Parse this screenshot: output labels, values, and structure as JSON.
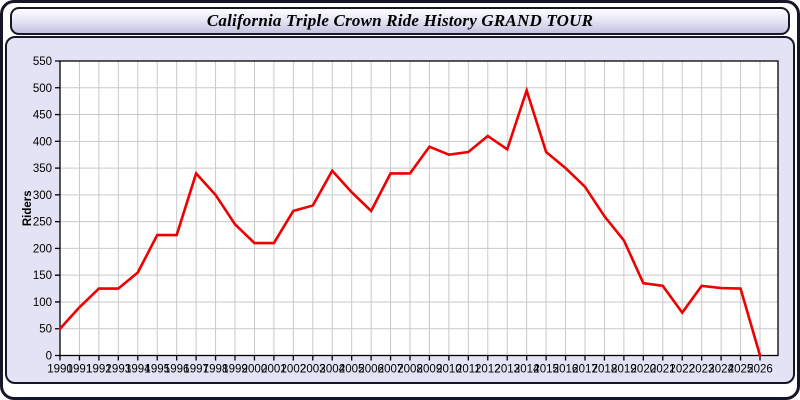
{
  "window": {
    "title": "California Triple Crown Ride History GRAND TOUR"
  },
  "colors": {
    "outer_border": "#16162a",
    "body_background": "#e3e3f5",
    "plot_background": "#ffffff",
    "grid": "#c9c9c9",
    "axis": "#000000",
    "line": "#ee0000",
    "tick_text": "#000000"
  },
  "chart_data": {
    "type": "line",
    "title": "California Triple Crown Ride History GRAND TOUR",
    "xlabel": "",
    "ylabel": "Riders",
    "ylim": [
      0,
      550
    ],
    "ytick_step": 50,
    "yticklabels": [
      "0",
      "50",
      "100",
      "150",
      "200",
      "250",
      "300",
      "350",
      "400",
      "450",
      "500",
      "550"
    ],
    "grid": true,
    "legend_position": "none",
    "x": [
      1990,
      1991,
      1992,
      1993,
      1994,
      1995,
      1996,
      1997,
      1998,
      1999,
      2000,
      2001,
      2002,
      2003,
      2004,
      2005,
      2006,
      2007,
      2008,
      2009,
      2010,
      2011,
      2012,
      2013,
      2014,
      2015,
      2016,
      2017,
      2018,
      2019,
      2020,
      2021,
      2022,
      2023,
      2024,
      2025,
      2026
    ],
    "xticklabels": [
      "1990",
      "1991",
      "1992",
      "1993",
      "1994",
      "1995",
      "1996",
      "1997",
      "1998",
      "1999",
      "2000",
      "2001",
      "2002",
      "2003",
      "2004",
      "2005",
      "2006",
      "2007",
      "2008",
      "2009",
      "2010",
      "2011",
      "2012",
      "2013",
      "2014",
      "2015",
      "2016",
      "2017",
      "2018",
      "2019",
      "2020",
      "2021",
      "2022",
      "2023",
      "2024",
      "2025",
      "2026"
    ],
    "series": [
      {
        "name": "Riders",
        "color": "#ee0000",
        "values": [
          50,
          90,
          125,
          125,
          155,
          225,
          225,
          340,
          300,
          245,
          210,
          210,
          270,
          280,
          345,
          305,
          270,
          340,
          340,
          390,
          375,
          380,
          410,
          385,
          495,
          380,
          350,
          315,
          260,
          215,
          135,
          130,
          80,
          130,
          126,
          125,
          0
        ]
      }
    ]
  }
}
